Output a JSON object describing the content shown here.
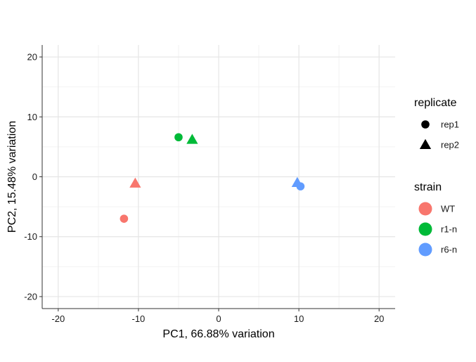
{
  "chart_data": {
    "type": "scatter",
    "xlabel": "PC1, 66.88% variation",
    "ylabel": "PC2, 15.48% variation",
    "xlim": [
      -22,
      22
    ],
    "ylim": [
      -22,
      22
    ],
    "xticks": [
      -20,
      -10,
      0,
      10,
      20
    ],
    "yticks": [
      -20,
      -10,
      0,
      10,
      20
    ],
    "grid": true,
    "legend_placement": "right",
    "points": [
      {
        "x": -11.8,
        "y": -7.0,
        "strain": "WT",
        "replicate": "rep1"
      },
      {
        "x": -10.4,
        "y": -1.1,
        "strain": "WT",
        "replicate": "rep2"
      },
      {
        "x": -5.0,
        "y": 6.6,
        "strain": "r1-n",
        "replicate": "rep1"
      },
      {
        "x": -3.3,
        "y": 6.2,
        "strain": "r1-n",
        "replicate": "rep2"
      },
      {
        "x": 10.2,
        "y": -1.6,
        "strain": "r6-n",
        "replicate": "rep1"
      },
      {
        "x": 9.8,
        "y": -1.0,
        "strain": "r6-n",
        "replicate": "rep2"
      }
    ],
    "legends": {
      "replicate": {
        "title": "replicate",
        "entries": [
          {
            "label": "rep1",
            "shape": "circle"
          },
          {
            "label": "rep2",
            "shape": "triangle"
          }
        ]
      },
      "strain": {
        "title": "strain",
        "entries": [
          {
            "label": "WT",
            "color": "#F8766D"
          },
          {
            "label": "r1-n",
            "color": "#00BA38"
          },
          {
            "label": "r6-n",
            "color": "#619CFF"
          }
        ]
      }
    }
  }
}
